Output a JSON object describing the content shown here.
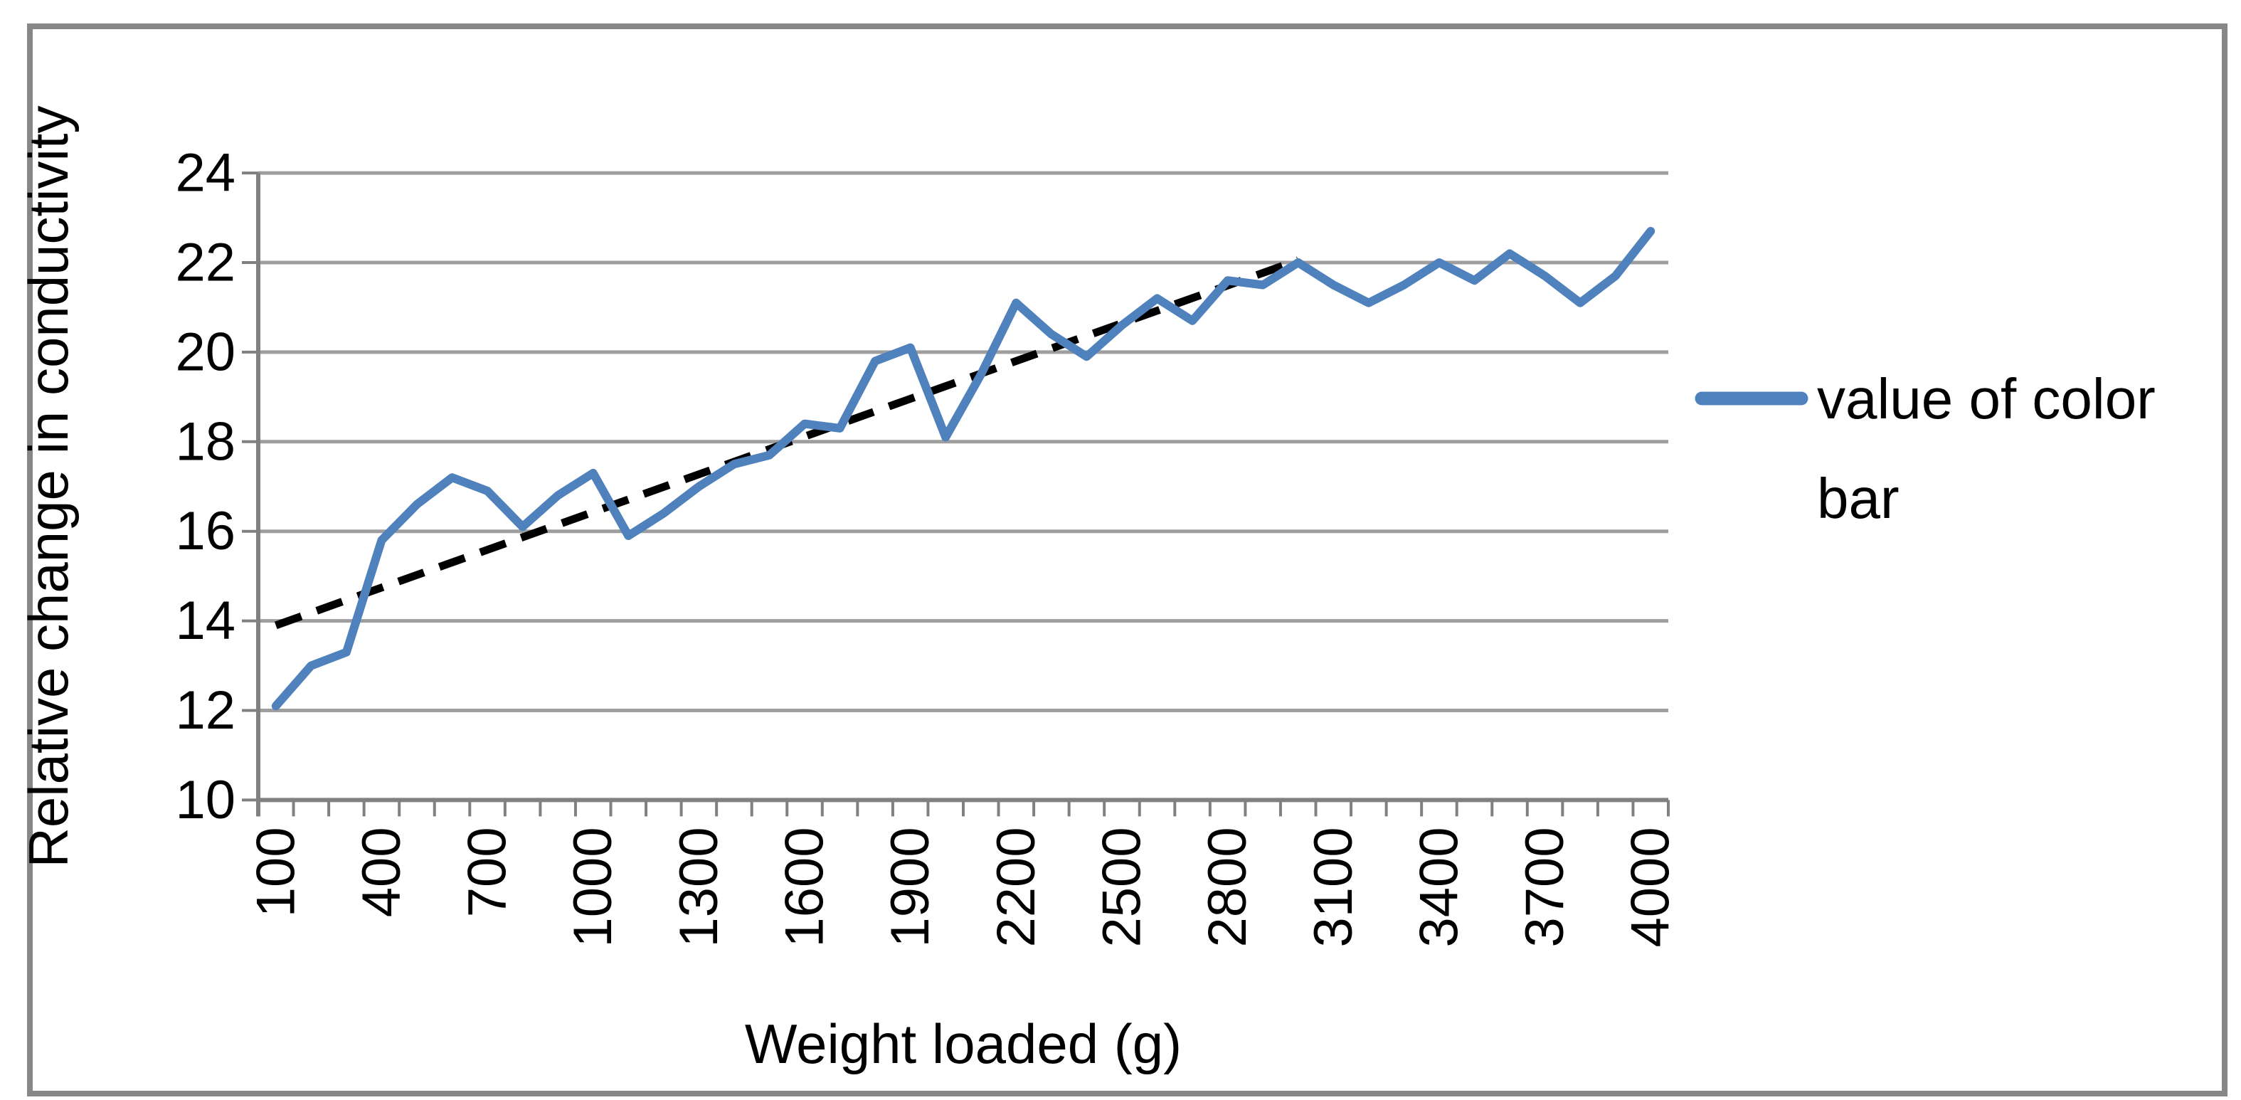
{
  "figure": {
    "y_axis_title": "Relative change in conductivity",
    "x_axis_title": "Weight loaded (g)",
    "legend": {
      "series_label": "value of color bar",
      "lines": [
        "value of color",
        "bar"
      ]
    }
  },
  "colors": {
    "series_blue": "#4F81BD",
    "trendline_black": "#000000",
    "gridline_gray": "#9E9E9E",
    "axis_gray": "#808080",
    "border_gray": "#878787",
    "text_black": "#000000",
    "background": "#FFFFFF"
  },
  "chart_data": {
    "type": "line",
    "title": "",
    "xlabel": "Weight loaded (g)",
    "ylabel": "Relative change in conductivity",
    "x": [
      100,
      200,
      300,
      400,
      500,
      600,
      700,
      800,
      900,
      1000,
      1100,
      1200,
      1300,
      1400,
      1500,
      1600,
      1700,
      1800,
      1900,
      2000,
      2100,
      2200,
      2300,
      2400,
      2500,
      2600,
      2700,
      2800,
      2900,
      3000,
      3100,
      3200,
      3300,
      3400,
      3500,
      3600,
      3700,
      3800,
      3900,
      4000
    ],
    "x_tick_labels": [
      "100",
      "400",
      "700",
      "1000",
      "1300",
      "1600",
      "1900",
      "2200",
      "2500",
      "2800",
      "3100",
      "3400",
      "3700",
      "4000"
    ],
    "y_ticks": [
      10,
      12,
      14,
      16,
      18,
      20,
      22,
      24
    ],
    "ylim": [
      10,
      24
    ],
    "grid": true,
    "legend_position": "right",
    "series": [
      {
        "name": "value of color bar",
        "color": "#4F81BD",
        "values": [
          12.1,
          13.0,
          13.3,
          15.8,
          16.6,
          17.2,
          16.9,
          16.1,
          16.8,
          17.3,
          15.9,
          16.4,
          17.0,
          17.5,
          17.7,
          18.4,
          18.3,
          19.8,
          20.1,
          18.1,
          19.5,
          21.1,
          20.4,
          19.9,
          20.6,
          21.2,
          20.7,
          21.6,
          21.5,
          22.0,
          21.5,
          21.1,
          21.5,
          22.0,
          21.6,
          22.2,
          21.7,
          21.1,
          21.7,
          22.7
        ]
      }
    ],
    "trendline": {
      "style": "dashed",
      "color": "#000000",
      "from": {
        "x": 100,
        "value": 13.9
      },
      "to": {
        "x": 3000,
        "value": 22.05
      }
    }
  }
}
